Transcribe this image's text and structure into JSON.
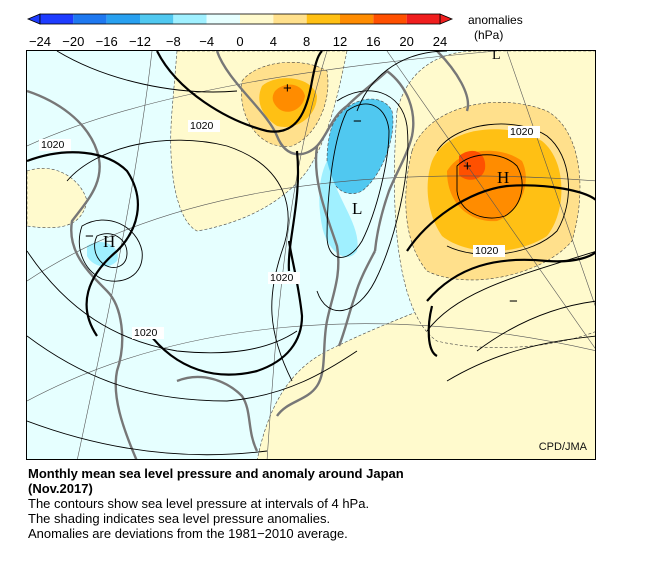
{
  "legend": {
    "title": "anomalies",
    "unit": "(hPa)",
    "ticks": [
      "−24",
      "−20",
      "−16",
      "−12",
      "−8",
      "−4",
      "0",
      "4",
      "8",
      "12",
      "16",
      "20",
      "24"
    ],
    "colors": [
      "#1e3cff",
      "#1e78f0",
      "#28a0f0",
      "#50c8f0",
      "#a0f0ff",
      "#e6ffff",
      "#fffacd",
      "#ffe08c",
      "#ffc014",
      "#ff8c00",
      "#ff5000",
      "#f01e1e"
    ]
  },
  "map": {
    "contour_label": "1020",
    "high_label": "H",
    "low_label": "L",
    "plus_sign": "+",
    "minus_sign": "−",
    "credit": "CPD/JMA"
  },
  "caption": {
    "title_line1": "Monthly mean sea level pressure and anomaly around Japan",
    "title_line2": "(Nov.2017)",
    "line1": "The contours show sea level pressure at intervals of 4 hPa.",
    "line2": "The shading indicates sea level pressure anomalies.",
    "line3": "Anomalies are deviations from the 1981−2010 average."
  }
}
